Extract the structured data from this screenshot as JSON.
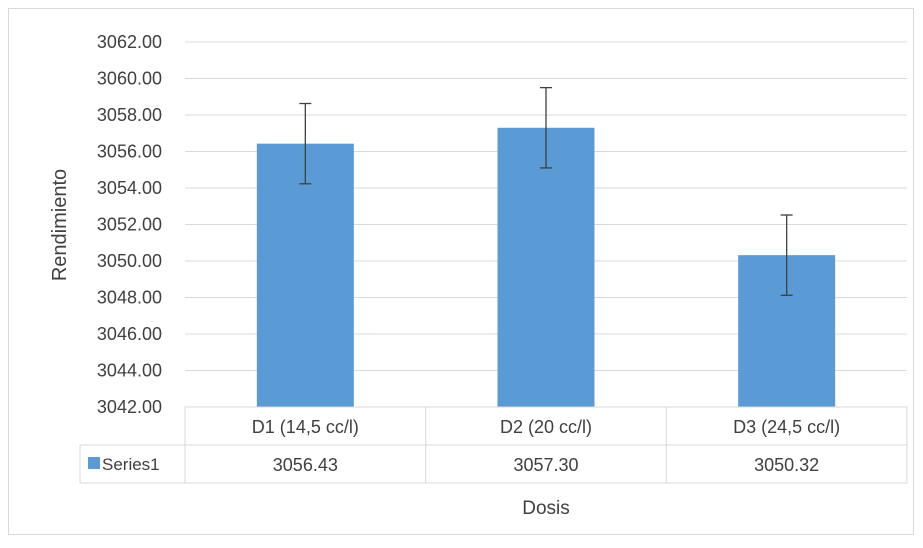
{
  "chart_data": {
    "type": "bar",
    "xlabel": "Dosis",
    "ylabel": "Rendimiento",
    "categories": [
      "D1 (14,5 cc/l)",
      "D2 (20 cc/l)",
      "D3 (24,5 cc/l)"
    ],
    "series": [
      {
        "name": "Series1",
        "values": [
          3056.43,
          3057.3,
          3050.32
        ],
        "value_labels": [
          "3056.43",
          "3057.30",
          "3050.32"
        ],
        "error": [
          2.2,
          2.2,
          2.2
        ]
      }
    ],
    "ylim": [
      3042,
      3062
    ],
    "ystep": 2,
    "yticks": [
      "3042.00",
      "3044.00",
      "3046.00",
      "3048.00",
      "3050.00",
      "3052.00",
      "3054.00",
      "3056.00",
      "3058.00",
      "3060.00",
      "3062.00"
    ],
    "grid": true,
    "legend": "data-table",
    "colors": {
      "bar": "#5B9BD5",
      "grid": "#D9D9D9",
      "text": "#404040",
      "error_bar": "#404040",
      "border": "#D9D9D9"
    }
  }
}
